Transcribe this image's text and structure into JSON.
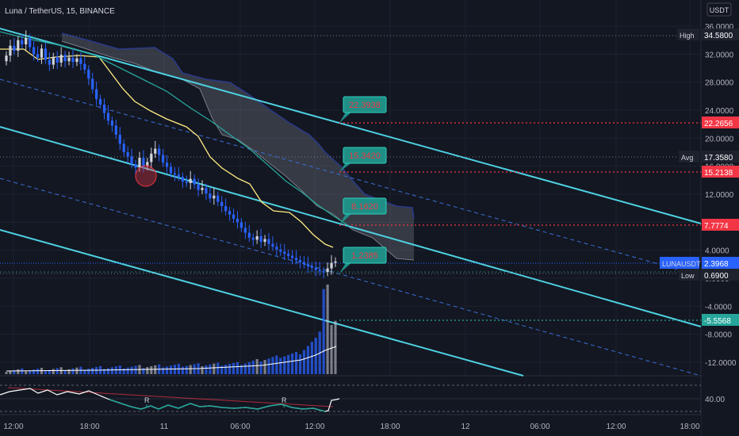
{
  "header": {
    "symbol_title": "Luna / TetherUS, 15, BINANCE",
    "currency_label": "USDT"
  },
  "colors": {
    "background": "#131722",
    "grid": "#1e2230",
    "up": "#d1d4dc",
    "down": "#2962ff",
    "channel": "#4dd0e1",
    "channel_mid": "#3b6fd6",
    "sma": "#ffeb81",
    "ema": "#26a69a",
    "cloud": "#2a3a8a",
    "callout_bg": "#1f8f86",
    "callout_text": "#f23645",
    "level_red": "#f23645",
    "level_green": "#26a69a"
  },
  "chart_data": {
    "type": "candlestick",
    "title": "Luna / TetherUS, 15, BINANCE",
    "y_unit": "USDT",
    "ylim": [
      -14,
      37.5
    ],
    "y_ticks": [
      36,
      32,
      28,
      24,
      20,
      16,
      12,
      8,
      4,
      0,
      -4,
      -8,
      -12
    ],
    "y_tick_labels": [
      "36.0000",
      "32.0000",
      "28.0000",
      "24.0000",
      "20.0000",
      "16.0000",
      "12.0000",
      "8.0000",
      "4.0000",
      "0.0000",
      "-4.0000",
      "-8.0000",
      "-12.0000"
    ],
    "x_ticks": [
      "12:00",
      "18:00",
      "11",
      "06:00",
      "12:00",
      "18:00",
      "12",
      "06:00",
      "12:00",
      "18:00"
    ],
    "grid": true,
    "price_tags": [
      {
        "label": "High",
        "value": "34.5800"
      },
      {
        "label": "Avg",
        "value": "17.3580"
      },
      {
        "label": "LUNAUSDT",
        "value": "2.3968"
      },
      {
        "label": "Low",
        "value": "0.6900"
      }
    ],
    "levels": [
      {
        "value": 22.2656,
        "label": "22.2656",
        "style": "red-dotted"
      },
      {
        "value": 15.2138,
        "label": "15.2138",
        "style": "red-dotted"
      },
      {
        "value": 7.7774,
        "label": "7.7774",
        "style": "red-dotted"
      },
      {
        "value": -5.5568,
        "label": "-5.5568",
        "style": "green-dotted"
      }
    ],
    "callouts": [
      "22.3938",
      "15.3420",
      "8.1620",
      "1.2385"
    ],
    "candles_close": [
      31.8,
      33.2,
      32.5,
      34.0,
      33.4,
      34.3,
      33.0,
      32.0,
      31.5,
      32.8,
      31.2,
      30.5,
      31.6,
      30.8,
      31.9,
      31.0,
      31.5,
      30.9,
      31.4,
      30.6,
      29.8,
      28.5,
      27.0,
      25.6,
      24.8,
      23.6,
      22.5,
      21.8,
      20.5,
      19.2,
      18.0,
      17.4,
      16.3,
      15.8,
      17.2,
      16.0,
      16.6,
      17.8,
      18.5,
      17.6,
      16.5,
      15.9,
      15.0,
      14.8,
      14.5,
      13.8,
      13.6,
      14.2,
      13.4,
      12.6,
      12.9,
      12.1,
      11.4,
      11.8,
      10.9,
      10.3,
      9.6,
      9.1,
      8.5,
      8.0,
      7.2,
      6.5,
      5.8,
      5.5,
      6.0,
      5.2,
      5.6,
      4.9,
      4.5,
      4.1,
      3.8,
      3.5,
      3.2,
      2.9,
      2.6,
      2.3,
      2.0,
      1.7,
      1.5,
      1.2,
      1.0,
      0.9,
      1.4,
      2.2,
      2.4
    ],
    "volume_note": "volume histogram with moving average",
    "rsi_ticks": [
      40
    ],
    "rsi_markers": [
      "R",
      "R"
    ]
  }
}
